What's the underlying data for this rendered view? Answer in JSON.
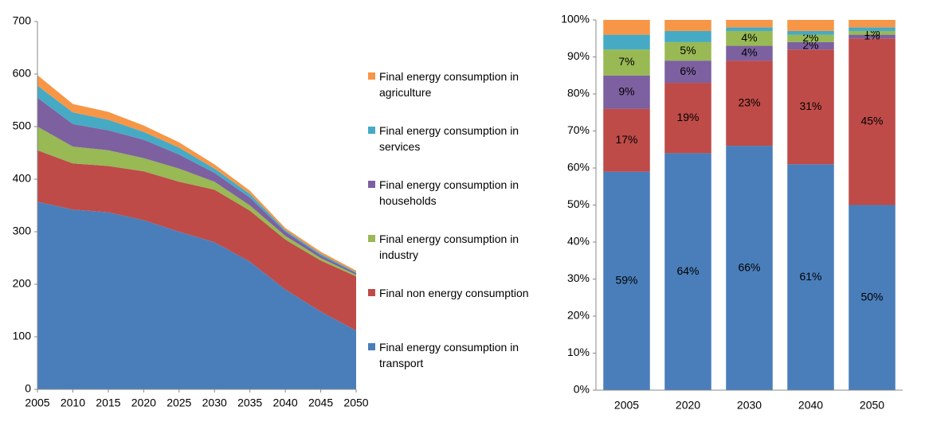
{
  "chart_data": [
    {
      "type": "area",
      "stacked": true,
      "x": [
        2005,
        2010,
        2015,
        2020,
        2025,
        2030,
        2035,
        2040,
        2045,
        2050
      ],
      "xlim": [
        2005,
        2050
      ],
      "xticks": [
        2005,
        2010,
        2015,
        2020,
        2025,
        2030,
        2035,
        2040,
        2045,
        2050
      ],
      "ylim": [
        0,
        700
      ],
      "yticks": [
        0,
        100,
        200,
        300,
        400,
        500,
        600,
        700
      ],
      "grid": false,
      "legend": "right",
      "series": [
        {
          "name": "Final energy consumption in transport",
          "color": "#4a7ebb",
          "values": [
            357,
            342,
            337,
            322,
            300,
            280,
            243,
            190,
            148,
            112
          ]
        },
        {
          "name": "Final non energy consumption",
          "color": "#be4b48",
          "values": [
            98,
            88,
            88,
            93,
            95,
            100,
            97,
            95,
            97,
            103
          ]
        },
        {
          "name": "Final energy consumption in industry",
          "color": "#98b954",
          "values": [
            45,
            32,
            30,
            25,
            25,
            15,
            10,
            7,
            5,
            3
          ]
        },
        {
          "name": "Final energy consumption in households",
          "color": "#7d60a0",
          "values": [
            55,
            43,
            38,
            35,
            27,
            17,
            15,
            8,
            5,
            3
          ]
        },
        {
          "name": "Final energy consumption in services",
          "color": "#46aac5",
          "values": [
            23,
            22,
            20,
            15,
            13,
            8,
            7,
            3,
            3,
            2
          ]
        },
        {
          "name": "Final energy consumption in agriculture",
          "color": "#f79646",
          "values": [
            20,
            16,
            15,
            12,
            10,
            8,
            6,
            4,
            4,
            3
          ]
        }
      ]
    },
    {
      "type": "bar",
      "stacked": true,
      "categories": [
        "2005",
        "2020",
        "2030",
        "2040",
        "2050"
      ],
      "ylim": [
        0,
        100
      ],
      "yticks": [
        {
          "value": 0,
          "label": "0%"
        },
        {
          "value": 10,
          "label": "10%"
        },
        {
          "value": 20,
          "label": "20%"
        },
        {
          "value": 30,
          "label": "30%"
        },
        {
          "value": 40,
          "label": "40%"
        },
        {
          "value": 50,
          "label": "50%"
        },
        {
          "value": 60,
          "label": "60%"
        },
        {
          "value": 70,
          "label": "70%"
        },
        {
          "value": 80,
          "label": "80%"
        },
        {
          "value": 90,
          "label": "90%"
        },
        {
          "value": 100,
          "label": "100%"
        }
      ],
      "grid": false,
      "series": [
        {
          "color": "#4a7ebb",
          "values": [
            59,
            64,
            66,
            61,
            50
          ],
          "value_labels": [
            "59%",
            "64%",
            "66%",
            "61%",
            "50%"
          ]
        },
        {
          "color": "#be4b48",
          "values": [
            17,
            19,
            23,
            31,
            45
          ],
          "value_labels": [
            "17%",
            "19%",
            "23%",
            "31%",
            "45%"
          ]
        },
        {
          "color": "#7d60a0",
          "values": [
            9,
            6,
            4,
            2,
            1
          ],
          "value_labels": [
            "9%",
            "6%",
            "4%",
            "2%",
            "1%"
          ]
        },
        {
          "color": "#98b954",
          "values": [
            7,
            5,
            4,
            2,
            1
          ],
          "value_labels": [
            "7%",
            "5%",
            "4%",
            "2%",
            "1%"
          ]
        },
        {
          "color": "#46aac5",
          "values": [
            4,
            3,
            1,
            1,
            1
          ]
        },
        {
          "color": "#f79646",
          "values": [
            4,
            3,
            2,
            3,
            2
          ]
        }
      ]
    }
  ]
}
